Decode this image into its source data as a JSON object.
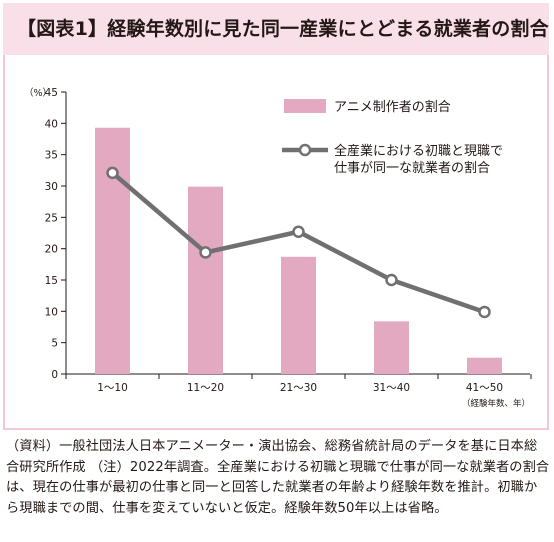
{
  "title": "【図表1】経験年数別に見た同一産業にとどまる就業者の割合",
  "footnote": "（資料）一般社団法人日本アニメーター・演出協会、総務省統計局のデータを基に日本総合研究所作成 （注）2022年調査。全産業における初職と現職で仕事が同一な就業者の割合は、現在の仕事が最初の仕事と同一と回答した就業者の年齢より経験年数を推計。初職から現職までの間、仕事を変えていないと仮定。経験年数50年以上は省略。",
  "colors": {
    "bar": "#e2a9c0",
    "line": "#717071",
    "frame": "#f2c7d6",
    "title_bg": "#f9dfe8"
  },
  "chart_data": {
    "type": "bar",
    "categories": [
      "1〜10",
      "11〜20",
      "21〜30",
      "31〜40",
      "41〜50"
    ],
    "xlabel": "（経験年数、年）",
    "ylabel": "（%）",
    "ylim": [
      0,
      45
    ],
    "yticks": [
      0,
      5,
      10,
      15,
      20,
      25,
      30,
      35,
      40,
      45
    ],
    "grid": false,
    "legend": "top-right",
    "series": [
      {
        "name": "アニメ制作者の割合",
        "kind": "bar",
        "values": [
          39.3,
          29.9,
          18.7,
          8.4,
          2.6
        ]
      },
      {
        "name": "全産業における初職と現職で仕事が同一な就業者の割合",
        "kind": "line",
        "legend_lines": [
          "全産業における初職と現職で",
          "仕事が同一な就業者の割合"
        ],
        "values": [
          32.1,
          19.4,
          22.7,
          15.0,
          9.9
        ]
      }
    ]
  }
}
